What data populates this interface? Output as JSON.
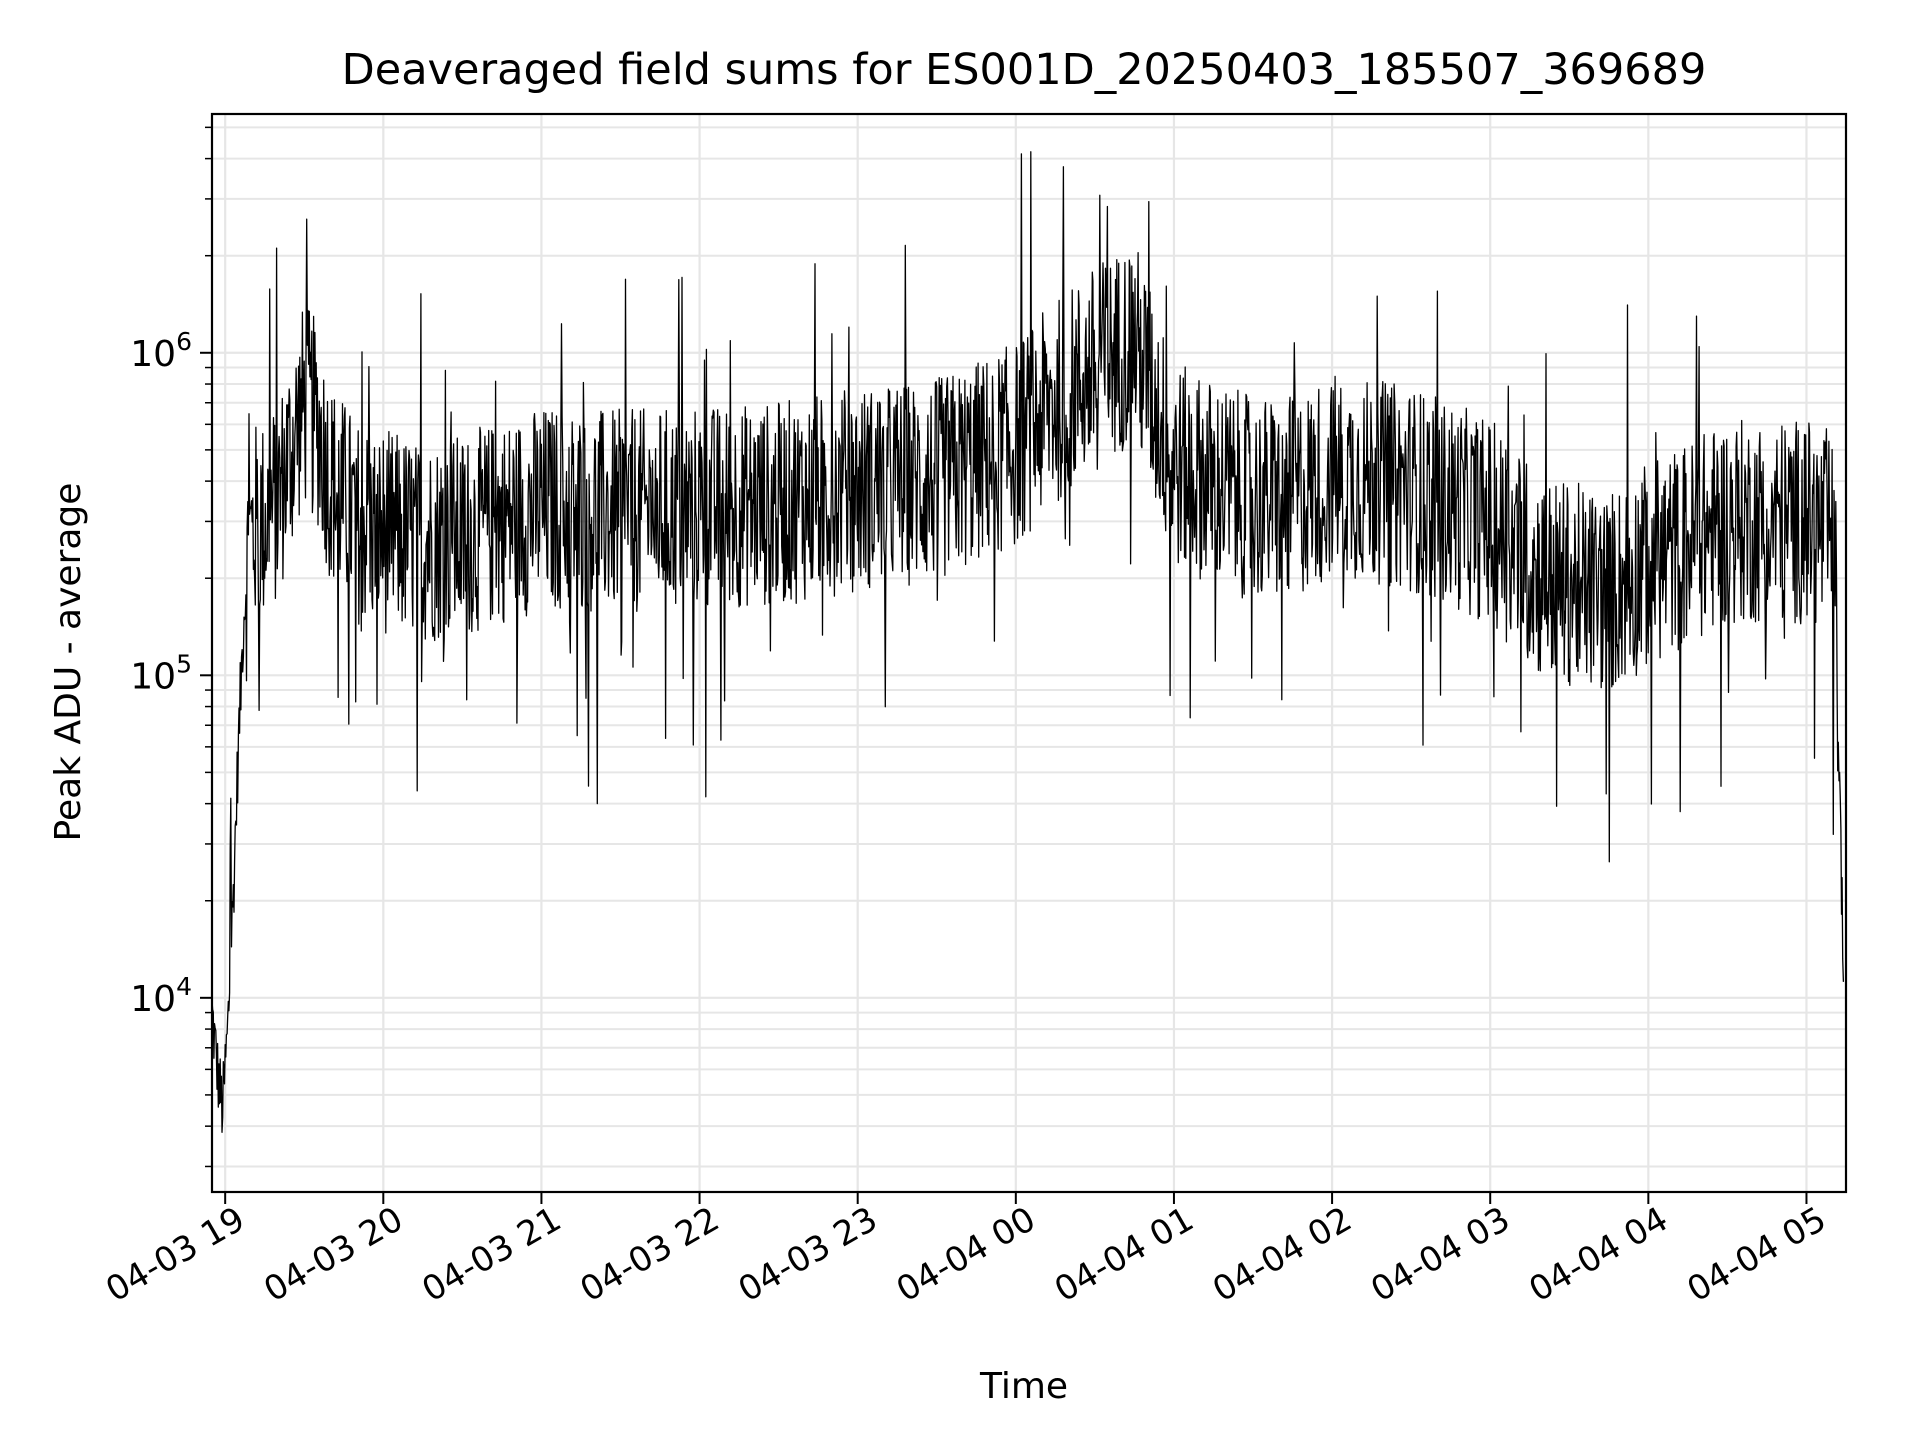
{
  "chart_data": {
    "type": "line",
    "title": "Deaveraged field sums for ES001D_20250403_185507_369689",
    "xlabel": "Time",
    "ylabel": "Peak ADU - average",
    "yscale": "log",
    "grid": true,
    "legend": "none",
    "colors": {
      "line": "#000000",
      "grid": "#e6e6e6",
      "axes": "#000000",
      "background": "#ffffff"
    },
    "xticks": [
      "04-03 19",
      "04-03 20",
      "04-03 21",
      "04-03 22",
      "04-03 23",
      "04-04 00",
      "04-04 01",
      "04-04 02",
      "04-04 03",
      "04-04 04",
      "04-04 05"
    ],
    "ytick_labels": [
      {
        "value": 10000,
        "base": "10",
        "exp": "4"
      },
      {
        "value": 100000,
        "base": "10",
        "exp": "5"
      },
      {
        "value": 1000000,
        "base": "10",
        "exp": "6"
      }
    ],
    "xlim": [
      "2025-04-03 18:55",
      "2025-04-04 05:15"
    ],
    "ylim": [
      2500,
      5500000
    ],
    "series": [
      {
        "x": [
          "2025-04-03 18:55",
          "2025-04-03 18:57",
          "2025-04-03 18:59",
          "2025-04-03 19:01",
          "2025-04-03 19:03",
          "2025-04-03 19:05",
          "2025-04-03 19:07",
          "2025-04-03 19:09",
          "2025-04-03 19:12",
          "2025-04-03 19:15",
          "2025-04-03 19:20",
          "2025-04-03 19:25",
          "2025-04-03 19:30",
          "2025-04-03 19:35",
          "2025-04-03 19:40",
          "2025-04-03 19:50",
          "2025-04-03 20:00",
          "2025-04-03 20:15",
          "2025-04-03 20:30",
          "2025-04-03 20:45",
          "2025-04-03 21:00",
          "2025-04-03 21:30",
          "2025-04-03 22:00",
          "2025-04-03 22:30",
          "2025-04-03 23:00",
          "2025-04-03 23:30",
          "2025-04-04 00:00",
          "2025-04-04 00:15",
          "2025-04-04 00:30",
          "2025-04-04 00:45",
          "2025-04-04 01:00",
          "2025-04-04 01:30",
          "2025-04-04 01:45",
          "2025-04-04 02:00",
          "2025-04-04 02:30",
          "2025-04-04 03:00",
          "2025-04-04 03:20",
          "2025-04-04 03:45",
          "2025-04-04 04:00",
          "2025-04-04 04:30",
          "2025-04-04 05:00",
          "2025-04-04 05:05",
          "2025-04-04 05:09",
          "2025-04-04 05:11",
          "2025-04-04 05:13",
          "2025-04-04 05:14"
        ],
        "y": [
          9000,
          6000,
          4500,
          8000,
          20000,
          60000,
          150000,
          250000,
          300000,
          300000,
          350000,
          500000,
          700000,
          600000,
          400000,
          300000,
          280000,
          260000,
          270000,
          300000,
          330000,
          320000,
          330000,
          340000,
          380000,
          400000,
          520000,
          700000,
          900000,
          1100000,
          450000,
          350000,
          350000,
          420000,
          380000,
          300000,
          200000,
          180000,
          220000,
          300000,
          300000,
          280000,
          280000,
          200000,
          30000,
          12000
        ]
      }
    ]
  }
}
